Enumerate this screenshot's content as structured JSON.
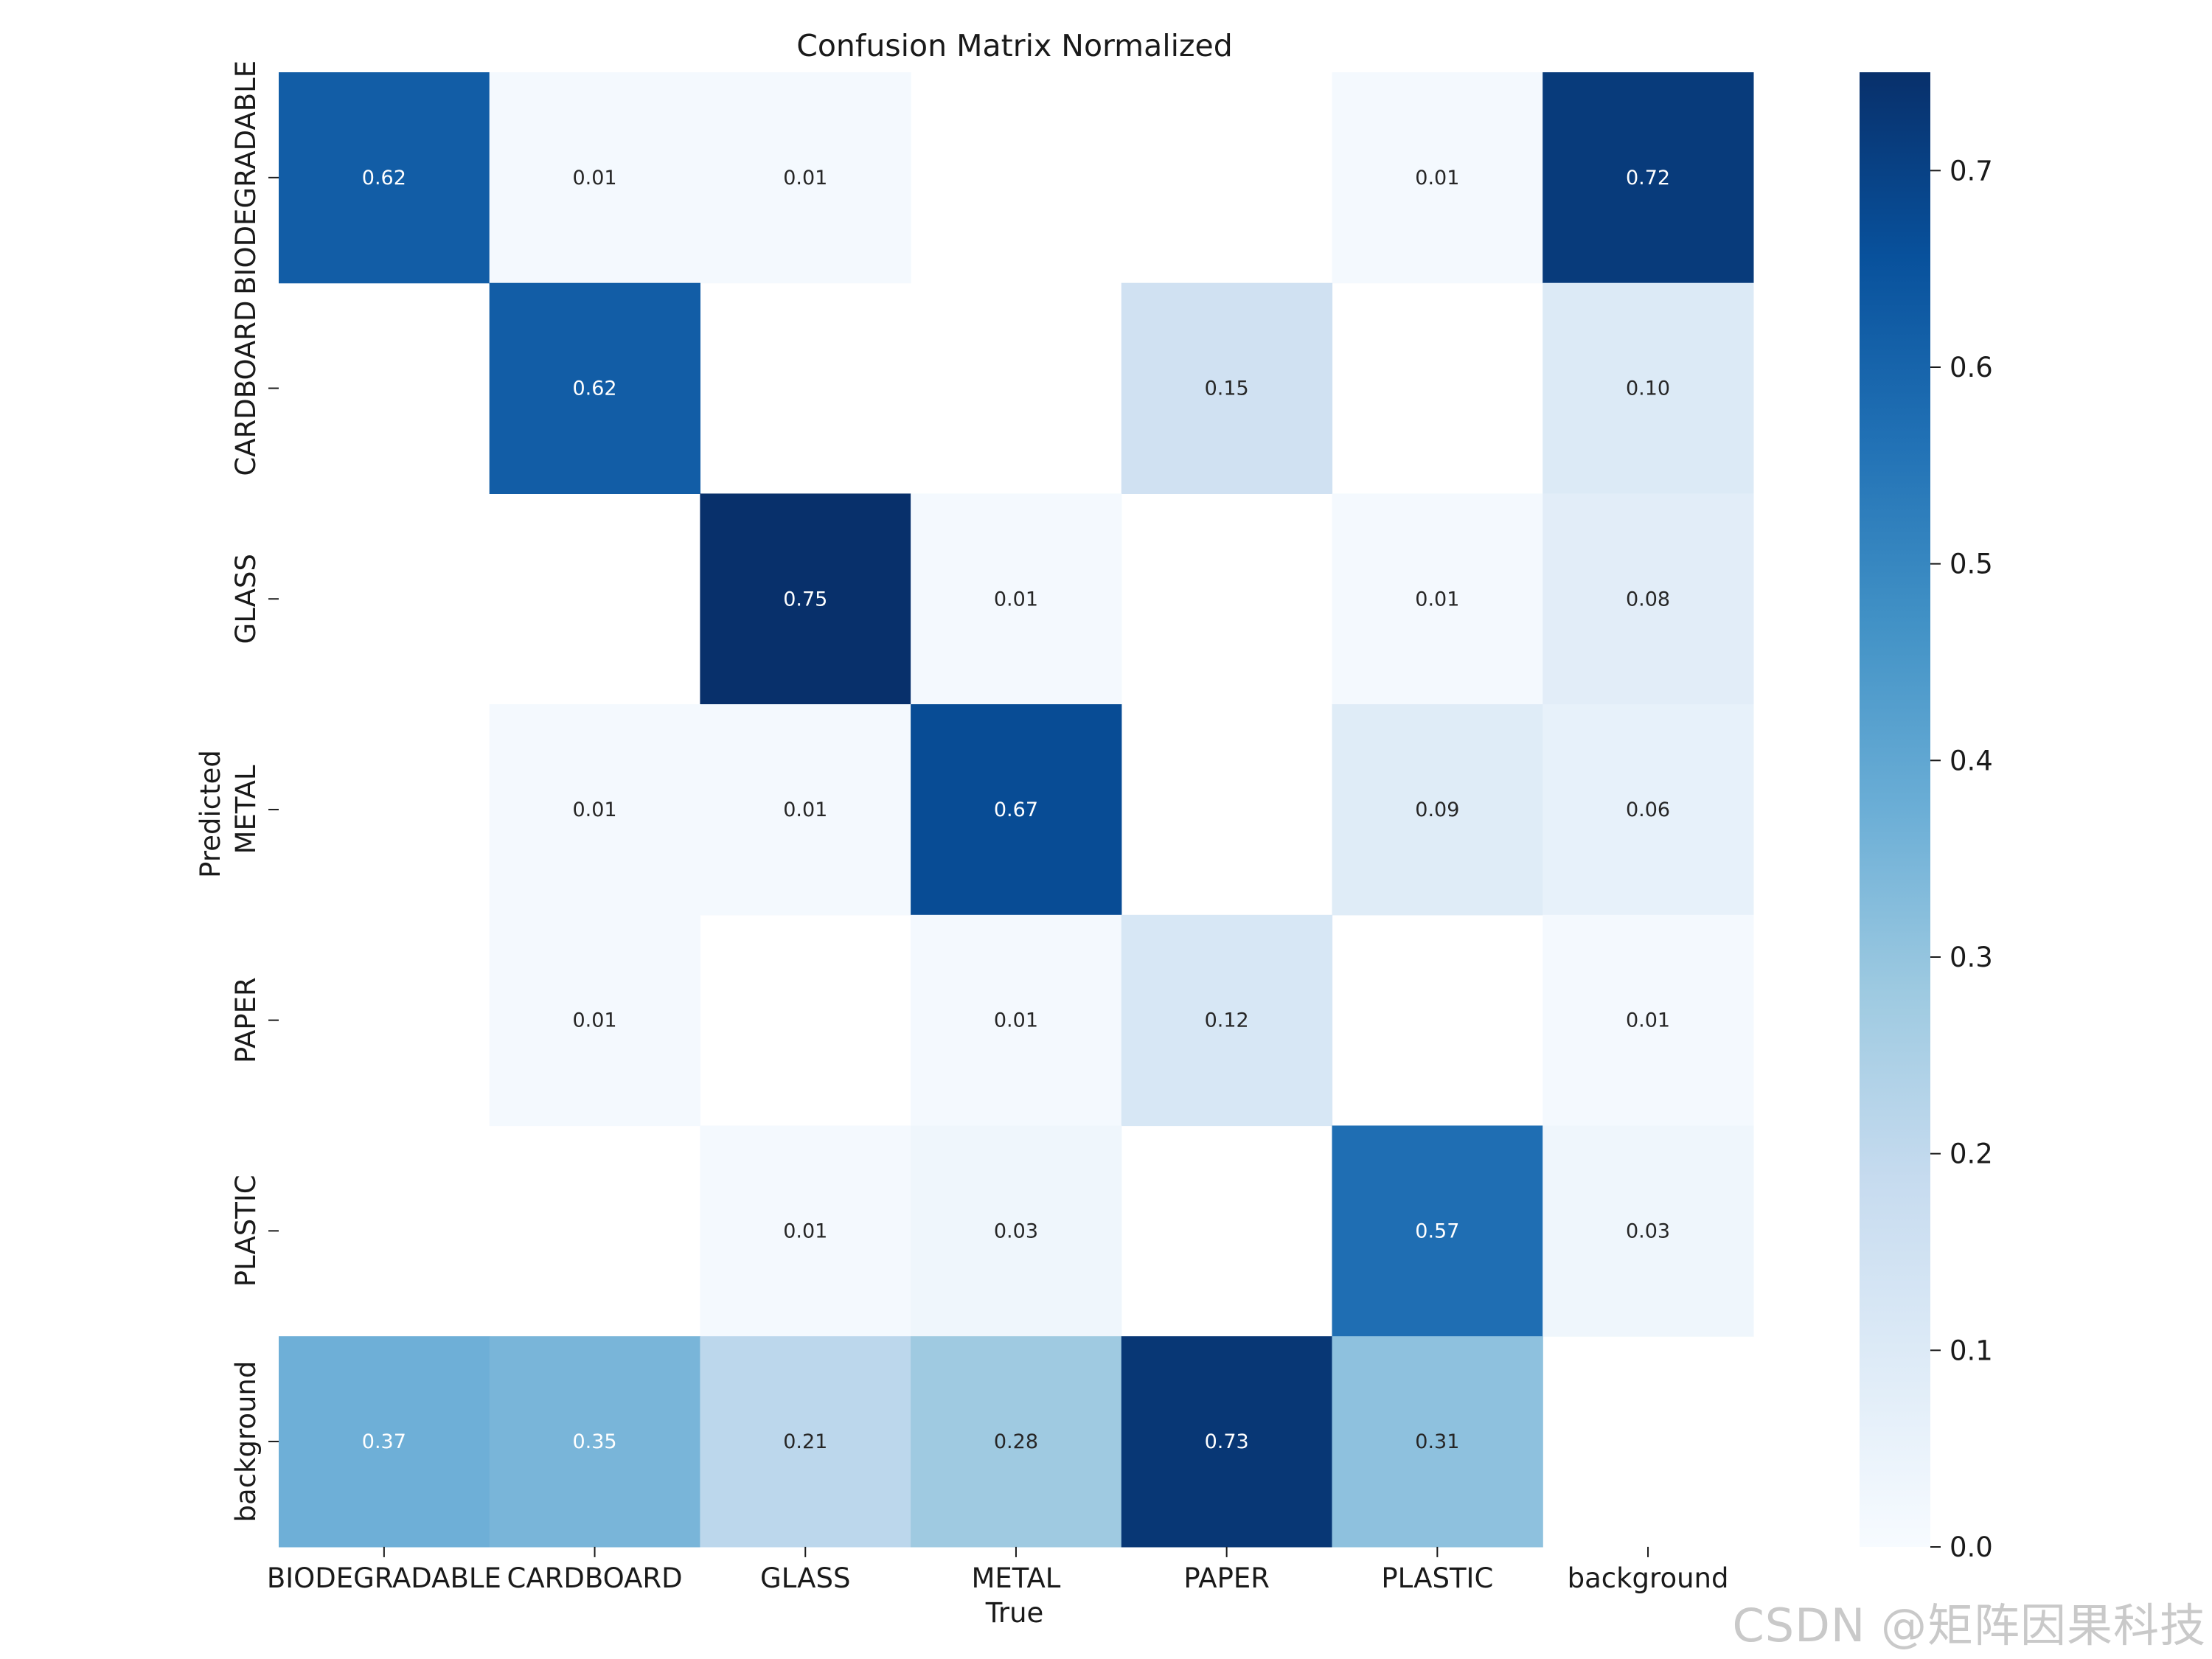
{
  "chart_data": {
    "type": "heatmap",
    "title": "Confusion Matrix Normalized",
    "xlabel": "True",
    "ylabel": "Predicted",
    "x_categories": [
      "BIODEGRADABLE",
      "CARDBOARD",
      "GLASS",
      "METAL",
      "PAPER",
      "PLASTIC",
      "background"
    ],
    "y_categories": [
      "BIODEGRADABLE",
      "CARDBOARD",
      "GLASS",
      "METAL",
      "PAPER",
      "PLASTIC",
      "background"
    ],
    "values": [
      [
        0.62,
        0.01,
        0.01,
        null,
        null,
        0.01,
        0.72
      ],
      [
        null,
        0.62,
        null,
        null,
        0.15,
        null,
        0.1
      ],
      [
        null,
        null,
        0.75,
        0.01,
        null,
        0.01,
        0.08
      ],
      [
        null,
        0.01,
        0.01,
        0.67,
        null,
        0.09,
        0.06
      ],
      [
        null,
        0.01,
        null,
        0.01,
        0.12,
        null,
        0.01
      ],
      [
        null,
        null,
        0.01,
        0.03,
        null,
        0.57,
        0.03
      ],
      [
        0.37,
        0.35,
        0.21,
        0.28,
        0.73,
        0.31,
        null
      ]
    ],
    "colormap": "Blues",
    "vmin": 0.0,
    "vmax": 0.75,
    "colorbar_ticks": [
      "0.0",
      "0.1",
      "0.2",
      "0.3",
      "0.4",
      "0.5",
      "0.6",
      "0.7"
    ]
  },
  "watermark": "CSDN @矩阵因果科技"
}
